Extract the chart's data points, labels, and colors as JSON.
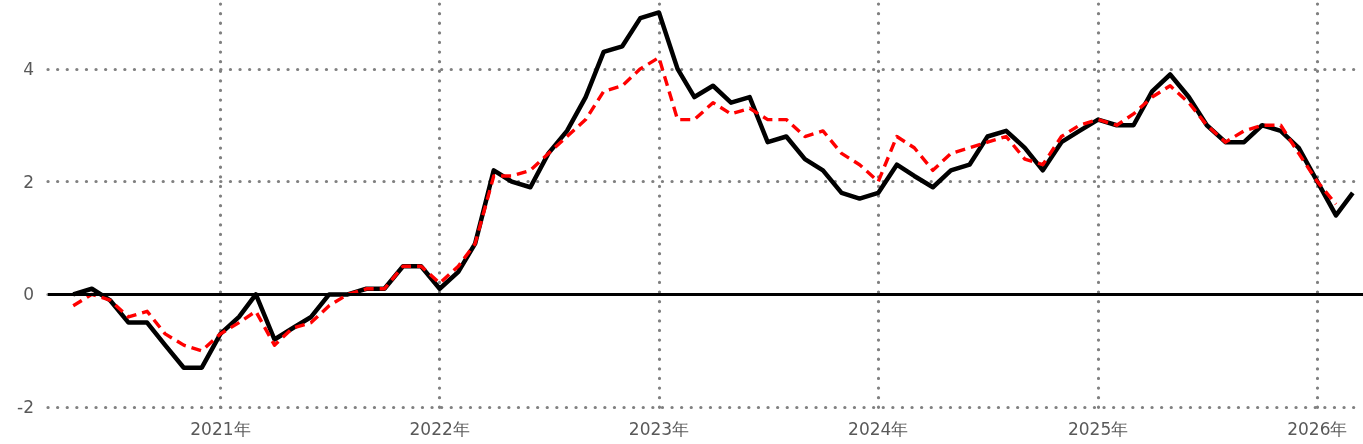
{
  "chart_data": {
    "type": "line",
    "x": [
      "2020-05",
      "2020-06",
      "2020-07",
      "2020-08",
      "2020-09",
      "2020-10",
      "2020-11",
      "2020-12",
      "2021-01",
      "2021-02",
      "2021-03",
      "2021-04",
      "2021-05",
      "2021-06",
      "2021-07",
      "2021-08",
      "2021-09",
      "2021-10",
      "2021-11",
      "2021-12",
      "2022-01",
      "2022-02",
      "2022-03",
      "2022-04",
      "2022-05",
      "2022-06",
      "2022-07",
      "2022-08",
      "2022-09",
      "2022-10",
      "2022-11",
      "2022-12",
      "2023-01",
      "2023-02",
      "2023-03",
      "2023-04",
      "2023-05",
      "2023-06",
      "2023-07",
      "2023-08",
      "2023-09",
      "2023-10",
      "2023-11",
      "2023-12",
      "2024-01",
      "2024-02",
      "2024-03",
      "2024-04",
      "2024-05",
      "2024-06",
      "2024-07",
      "2024-08",
      "2024-09",
      "2024-10",
      "2024-11",
      "2024-12",
      "2025-01",
      "2025-02",
      "2025-03",
      "2025-04",
      "2025-05",
      "2025-06",
      "2025-07",
      "2025-08",
      "2025-09",
      "2025-10",
      "2025-11",
      "2025-12",
      "2026-01",
      "2026-02",
      "2026-03"
    ],
    "series": [
      {
        "color": "#000000",
        "line_style": "solid",
        "values": [
          0,
          0.1,
          -0.1,
          -0.5,
          -0.5,
          -0.9,
          -1.3,
          -1.3,
          -0.7,
          -0.4,
          0,
          -0.8,
          -0.6,
          -0.4,
          0,
          0,
          0.1,
          0.1,
          0.5,
          0.5,
          0.1,
          0.4,
          0.9,
          2.2,
          2.0,
          1.9,
          2.5,
          2.9,
          3.5,
          4.3,
          4.4,
          4.9,
          5.0,
          4.0,
          3.5,
          3.7,
          3.4,
          3.5,
          2.7,
          2.8,
          2.4,
          2.2,
          1.8,
          1.7,
          1.8,
          2.3,
          2.1,
          1.9,
          2.2,
          2.3,
          2.8,
          2.9,
          2.6,
          2.2,
          2.7,
          2.9,
          3.1,
          3.0,
          3.0,
          3.6,
          3.9,
          3.5,
          3.0,
          2.7,
          2.7,
          3.0,
          2.9,
          2.6,
          2.0,
          1.4,
          1.8
        ]
      },
      {
        "color": "#ff0000",
        "line_style": "dashed",
        "values": [
          -0.2,
          0,
          -0.1,
          -0.4,
          -0.3,
          -0.7,
          -0.9,
          -1.0,
          -0.7,
          -0.5,
          -0.3,
          -0.9,
          -0.6,
          -0.5,
          -0.2,
          0,
          0.1,
          0.1,
          0.5,
          0.5,
          0.2,
          0.5,
          0.9,
          2.1,
          2.1,
          2.2,
          2.5,
          2.8,
          3.1,
          3.6,
          3.7,
          4.0,
          4.2,
          3.1,
          3.1,
          3.4,
          3.2,
          3.3,
          3.1,
          3.1,
          2.8,
          2.9,
          2.5,
          2.3,
          2.0,
          2.8,
          2.6,
          2.2,
          2.5,
          2.6,
          2.7,
          2.8,
          2.4,
          2.3,
          2.8,
          3.0,
          3.1,
          3.0,
          3.2,
          3.5,
          3.7,
          3.4,
          3.0,
          2.7,
          2.9,
          3.0,
          3.0,
          2.5,
          2.0,
          1.6,
          null
        ]
      }
    ],
    "xlim": [
      "2020-03-20",
      "2026-03-18"
    ],
    "xticks": [
      {
        "value": "2021",
        "label": "2021年"
      },
      {
        "value": "2022",
        "label": "2022年"
      },
      {
        "value": "2023",
        "label": "2023年"
      },
      {
        "value": "2024",
        "label": "2024年"
      },
      {
        "value": "2025",
        "label": "2025年"
      },
      {
        "value": "2026",
        "label": "2026年"
      }
    ],
    "ylim": [
      -2.05,
      5.15
    ],
    "yticks": [
      -2,
      0,
      2,
      4
    ],
    "grid": true,
    "marker": "none",
    "ref_lines": [
      {
        "axis": "y",
        "value": 0,
        "color": "#000000",
        "line_style": "solid"
      }
    ]
  }
}
